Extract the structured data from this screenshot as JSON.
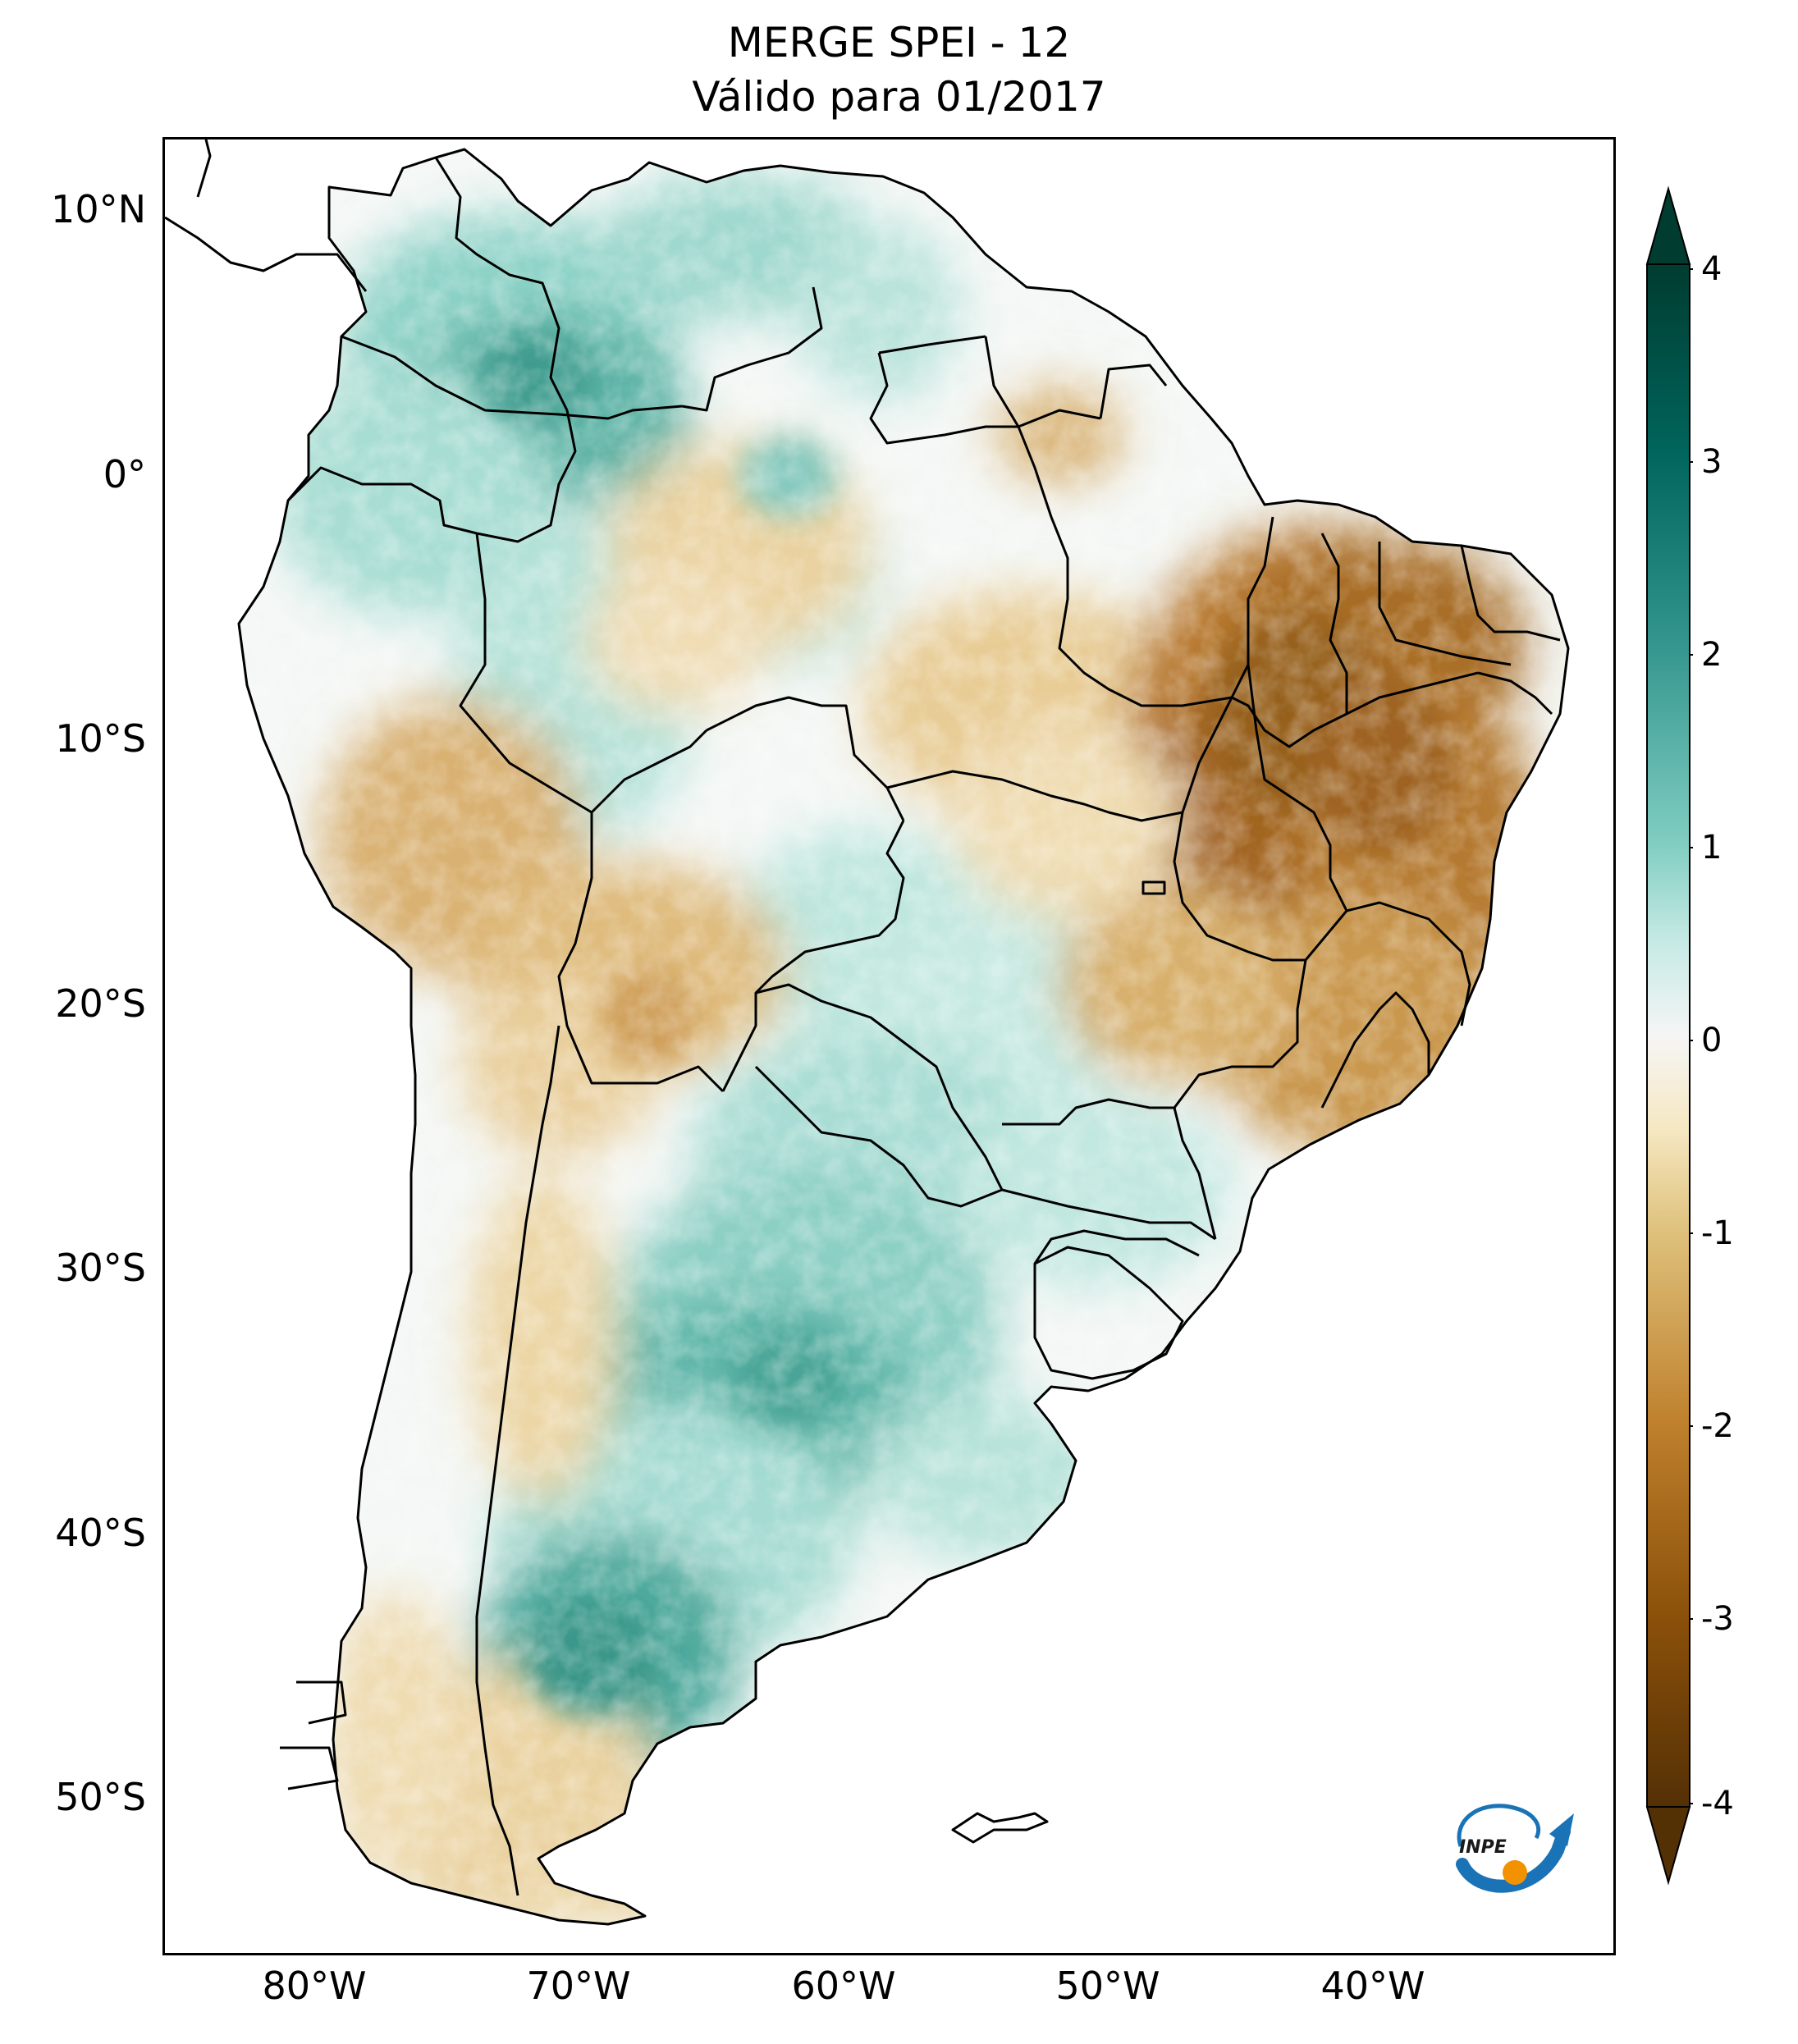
{
  "title": {
    "line1": "MERGE   SPEI - 12",
    "line2": "Válido para 01/2017"
  },
  "axes": {
    "lat_labels": [
      "10°N",
      "0°",
      "10°S",
      "20°S",
      "30°S",
      "40°S",
      "50°S"
    ],
    "lon_labels": [
      "80°W",
      "70°W",
      "60°W",
      "50°W",
      "40°W"
    ]
  },
  "colorbar": {
    "ticks": [
      "4",
      "3",
      "2",
      "1",
      "0",
      "-1",
      "-2",
      "-3",
      "-4"
    ],
    "range": [
      -4,
      4
    ],
    "colors": {
      "max": "#003c30",
      "high": "#35978f",
      "mid_high": "#c7eae5",
      "zero": "#f5f5f5",
      "mid_low": "#f6e8c3",
      "low": "#bf812d",
      "min": "#543005"
    }
  },
  "logo": {
    "text": "INPE"
  }
}
